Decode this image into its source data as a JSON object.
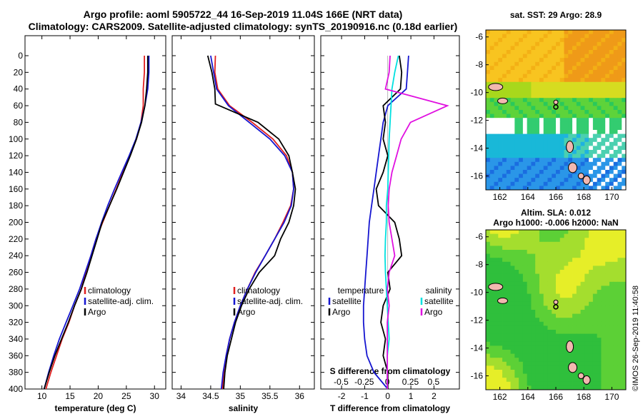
{
  "header": {
    "title_line1": "Argo profile: aoml 5905722_44 16-Sep-2019 11.04S 166E (NRT data)",
    "title_line2": "Climatology: CARS2009. Satellite-adjusted climatology: synTS_20190916.nc (0.18d earlier)"
  },
  "credit": "©IMOS 26-Sep-2019 11:40:58",
  "colors": {
    "climatology": "#e02020",
    "satellite": "#1515d0",
    "argo": "#000000",
    "t_diff": "#000000",
    "s_diff_sat": "#00e0e0",
    "s_diff_clim": "#e010e0"
  },
  "chart_data": [
    {
      "type": "line",
      "name": "temperature",
      "xlabel": "temperature (deg C)",
      "ylabel": "depth",
      "xlim": [
        7,
        32
      ],
      "ylim": [
        400,
        0
      ],
      "xticks": [
        10,
        15,
        20,
        25,
        30
      ],
      "yticks": [
        0,
        20,
        40,
        60,
        80,
        100,
        120,
        140,
        160,
        180,
        200,
        220,
        240,
        260,
        280,
        300,
        320,
        340,
        360,
        380,
        400
      ],
      "legend": [
        "climatology",
        "satellite-adj. clim.",
        "Argo"
      ],
      "series": [
        {
          "name": "climatology",
          "x": [
            28.2,
            28.2,
            28.0,
            28.0,
            27.6,
            26.8,
            25.6,
            24.4,
            23.2,
            22.0,
            20.8,
            19.6,
            18.7,
            17.8,
            17.0,
            15.8,
            14.8,
            13.6,
            12.6,
            11.6,
            10.7
          ],
          "y": [
            0,
            20,
            40,
            60,
            80,
            100,
            120,
            140,
            160,
            180,
            200,
            220,
            240,
            260,
            280,
            300,
            320,
            340,
            360,
            380,
            400
          ]
        },
        {
          "name": "satellite-adj. clim.",
          "x": [
            29.0,
            29.0,
            28.8,
            28.3,
            27.6,
            26.7,
            25.5,
            24.2,
            22.9,
            21.7,
            20.6,
            19.6,
            18.7,
            17.7,
            16.7,
            15.5,
            14.3,
            13.1,
            12.1,
            11.2,
            10.4
          ],
          "y": [
            0,
            20,
            40,
            60,
            80,
            100,
            120,
            140,
            160,
            180,
            200,
            220,
            240,
            260,
            280,
            300,
            320,
            340,
            360,
            380,
            400
          ]
        },
        {
          "name": "Argo",
          "x": [
            28.8,
            28.8,
            28.6,
            28.3,
            27.7,
            26.8,
            25.7,
            24.5,
            23.3,
            22.0,
            20.7,
            19.8,
            18.9,
            18.0,
            17.0,
            15.8,
            14.7,
            13.5,
            12.3,
            11.3,
            10.4
          ],
          "y": [
            0,
            20,
            40,
            60,
            80,
            100,
            120,
            140,
            160,
            180,
            200,
            220,
            240,
            260,
            280,
            300,
            320,
            340,
            360,
            380,
            400
          ]
        }
      ]
    },
    {
      "type": "line",
      "name": "salinity",
      "xlabel": "salinity",
      "ylabel": "depth",
      "xlim": [
        33.85,
        36.25
      ],
      "ylim": [
        400,
        0
      ],
      "xticks": [
        34,
        34.5,
        35,
        35.5,
        36
      ],
      "yticks": [
        0,
        20,
        40,
        60,
        80,
        100,
        120,
        140,
        160,
        180,
        200,
        220,
        240,
        260,
        280,
        300,
        320,
        340,
        360,
        380,
        400
      ],
      "legend": [
        "climatology",
        "satellite-adj. clim.",
        "Argo"
      ],
      "series": [
        {
          "name": "climatology",
          "x": [
            34.58,
            34.57,
            34.62,
            34.82,
            35.2,
            35.55,
            35.78,
            35.88,
            35.9,
            35.85,
            35.72,
            35.58,
            35.42,
            35.25,
            35.12,
            35.0,
            34.9,
            34.82,
            34.76,
            34.72,
            34.7
          ],
          "y": [
            0,
            20,
            40,
            60,
            80,
            100,
            120,
            140,
            160,
            180,
            200,
            220,
            240,
            260,
            280,
            300,
            320,
            340,
            360,
            380,
            400
          ]
        },
        {
          "name": "satellite-adj. clim.",
          "x": [
            34.5,
            34.55,
            34.6,
            34.8,
            35.15,
            35.5,
            35.75,
            35.88,
            35.9,
            35.86,
            35.74,
            35.58,
            35.42,
            35.26,
            35.12,
            35.0,
            34.9,
            34.82,
            34.76,
            34.71,
            34.68
          ],
          "y": [
            0,
            20,
            40,
            60,
            80,
            100,
            120,
            140,
            160,
            180,
            200,
            220,
            240,
            260,
            280,
            300,
            320,
            340,
            360,
            380,
            400
          ]
        },
        {
          "name": "Argo",
          "x": [
            34.45,
            34.52,
            34.57,
            34.58,
            35.3,
            35.65,
            35.82,
            35.88,
            35.93,
            35.9,
            35.82,
            35.68,
            35.58,
            35.32,
            35.15,
            35.02,
            34.92,
            34.85,
            34.78,
            34.74,
            34.72
          ],
          "y": [
            0,
            20,
            40,
            58,
            80,
            100,
            120,
            140,
            160,
            180,
            200,
            220,
            240,
            260,
            280,
            300,
            320,
            340,
            360,
            380,
            400
          ]
        }
      ]
    },
    {
      "type": "line",
      "name": "difference from climatology",
      "xlabel": "T difference from climatology",
      "top_xlabel": "S difference from climatology",
      "xlim": [
        -2.9,
        3.1
      ],
      "top_xlim": [
        -0.72,
        0.78
      ],
      "ylim": [
        400,
        0
      ],
      "xticks": [
        -2,
        -1,
        0,
        1,
        2
      ],
      "top_xticks": [
        -0.5,
        -0.25,
        0,
        0.25,
        0.5
      ],
      "top_xtick_labels": [
        "-0.5",
        "-0.25",
        "0",
        "0.25",
        "0.5"
      ],
      "yticks": [
        0,
        20,
        40,
        60,
        80,
        100,
        120,
        140,
        160,
        180,
        200,
        220,
        240,
        260,
        280,
        300,
        320,
        340,
        360,
        380,
        400
      ],
      "legend_temperature": {
        "title": "temperature",
        "items": [
          "satellite",
          "Argo"
        ]
      },
      "legend_salinity": {
        "title": "salinity",
        "items": [
          "satellite",
          "Argo"
        ]
      },
      "series": [
        {
          "name": "T satellite",
          "axis": "T",
          "x": [
            0.9,
            0.85,
            0.8,
            0.0,
            -0.2,
            -0.3,
            -0.4,
            -0.5,
            -0.6,
            -0.7,
            -0.8,
            -0.85,
            -0.9,
            -0.95,
            -1.0,
            -1.05,
            -1.05,
            -1.0,
            -0.9,
            -0.6,
            0.0
          ],
          "y": [
            0,
            20,
            40,
            60,
            80,
            100,
            120,
            140,
            160,
            180,
            200,
            220,
            240,
            260,
            280,
            300,
            320,
            340,
            360,
            380,
            400
          ]
        },
        {
          "name": "T Argo",
          "axis": "T",
          "x": [
            0.5,
            0.6,
            0.55,
            -0.2,
            -0.1,
            -0.2,
            0.0,
            -0.2,
            -0.5,
            -0.4,
            0.3,
            0.5,
            0.6,
            0.0,
            0.1,
            -0.2,
            -0.3,
            -0.1,
            -0.2,
            0.0,
            0.0
          ],
          "y": [
            0,
            20,
            40,
            60,
            80,
            100,
            120,
            140,
            160,
            180,
            200,
            220,
            240,
            260,
            280,
            300,
            320,
            340,
            360,
            380,
            400
          ]
        },
        {
          "name": "S satellite",
          "axis": "S",
          "x": [
            0.12,
            0.08,
            0.05,
            0.04,
            0.03,
            0.02,
            0.015,
            0.01,
            0.005,
            -0.01,
            -0.01,
            -0.02,
            -0.025,
            -0.02,
            -0.01,
            0.0,
            0.01,
            0.02,
            0.0,
            0.0,
            0.0
          ],
          "y": [
            0,
            20,
            40,
            60,
            80,
            100,
            120,
            140,
            160,
            180,
            200,
            220,
            240,
            260,
            280,
            300,
            320,
            340,
            360,
            380,
            400
          ]
        },
        {
          "name": "S Argo",
          "axis": "S",
          "x": [
            0.03,
            0.02,
            -0.02,
            0.65,
            0.25,
            0.15,
            0.1,
            0.05,
            0.02,
            0.01,
            0.02,
            0.05,
            0.08,
            0.02,
            0.0,
            0.02,
            0.0,
            0.0,
            0.0,
            0.0,
            0.0
          ],
          "y": [
            0,
            20,
            40,
            60,
            80,
            100,
            120,
            140,
            160,
            180,
            200,
            220,
            240,
            260,
            280,
            300,
            320,
            340,
            360,
            380,
            400
          ]
        }
      ]
    },
    {
      "type": "heatmap",
      "name": "sst-map",
      "title": "sat. SST: 29 Argo: 28.9",
      "xlim": [
        161,
        171
      ],
      "ylim": [
        -17,
        -5.5
      ],
      "xticks": [
        162,
        164,
        166,
        168,
        170
      ],
      "yticks": [
        -6,
        -8,
        -10,
        -12,
        -14,
        -16
      ],
      "argo_position": [
        166,
        -11.04
      ]
    },
    {
      "type": "heatmap",
      "name": "sla-map",
      "title_line1": "Altim. SLA: 0.012",
      "title_line2": "Argo h1000: -0.006 h2000: NaN",
      "xlim": [
        161,
        171
      ],
      "ylim": [
        -17,
        -5.5
      ],
      "xticks": [
        162,
        164,
        166,
        168,
        170
      ],
      "yticks": [
        -6,
        -8,
        -10,
        -12,
        -14,
        -16
      ],
      "argo_position": [
        166,
        -11.04
      ]
    }
  ]
}
